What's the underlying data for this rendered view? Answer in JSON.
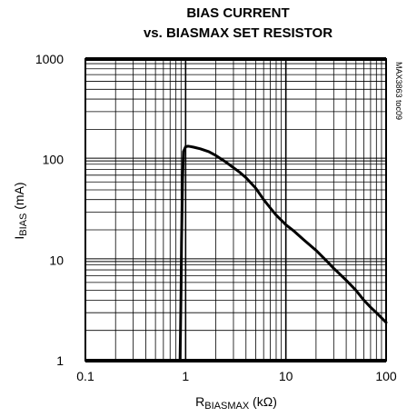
{
  "chart_data": {
    "type": "line",
    "title_line1": "BIAS CURRENT",
    "title_line2": "vs. BIASMAX SET RESISTOR",
    "xlabel": {
      "main": "R",
      "sub": "BIASMAX",
      "unit": " (kΩ)"
    },
    "ylabel": {
      "main": "I",
      "sub": "BIAS",
      "unit": " (mA)"
    },
    "x_scale": "log",
    "y_scale": "log",
    "xlim": [
      0.1,
      100
    ],
    "ylim": [
      1,
      1000
    ],
    "x_ticks": [
      {
        "value": 0.1,
        "label": "0.1"
      },
      {
        "value": 1,
        "label": "1"
      },
      {
        "value": 10,
        "label": "10"
      },
      {
        "value": 100,
        "label": "100"
      }
    ],
    "y_ticks": [
      {
        "value": 1,
        "label": "1"
      },
      {
        "value": 10,
        "label": "10"
      },
      {
        "value": 100,
        "label": "100"
      },
      {
        "value": 1000,
        "label": "1000"
      }
    ],
    "grid": true,
    "series": [
      {
        "x": [
          0.88,
          0.89,
          0.9,
          0.91,
          0.93,
          0.95,
          1.0,
          1.05,
          1.1,
          1.2,
          1.4,
          1.7,
          2.0,
          2.5,
          3.0,
          3.5,
          4.0,
          5.0,
          6.0,
          7.0,
          8.0,
          10.0,
          12.0,
          15.0,
          20.0,
          25.0,
          30.0,
          40.0,
          50.0,
          60.0,
          70.0,
          80.0,
          100.0
        ],
        "y": [
          1.05,
          2.0,
          5.0,
          15.0,
          60.0,
          120.0,
          134.0,
          136.0,
          135.0,
          133.0,
          128.0,
          120.0,
          110.0,
          95.0,
          83.0,
          74.0,
          66.0,
          52.0,
          40.0,
          33.0,
          28.0,
          22.5,
          19.5,
          16.0,
          12.5,
          10.0,
          8.3,
          6.3,
          5.0,
          4.0,
          3.4,
          3.0,
          2.4
        ]
      }
    ],
    "annotation": "MAX3863 toc09"
  }
}
